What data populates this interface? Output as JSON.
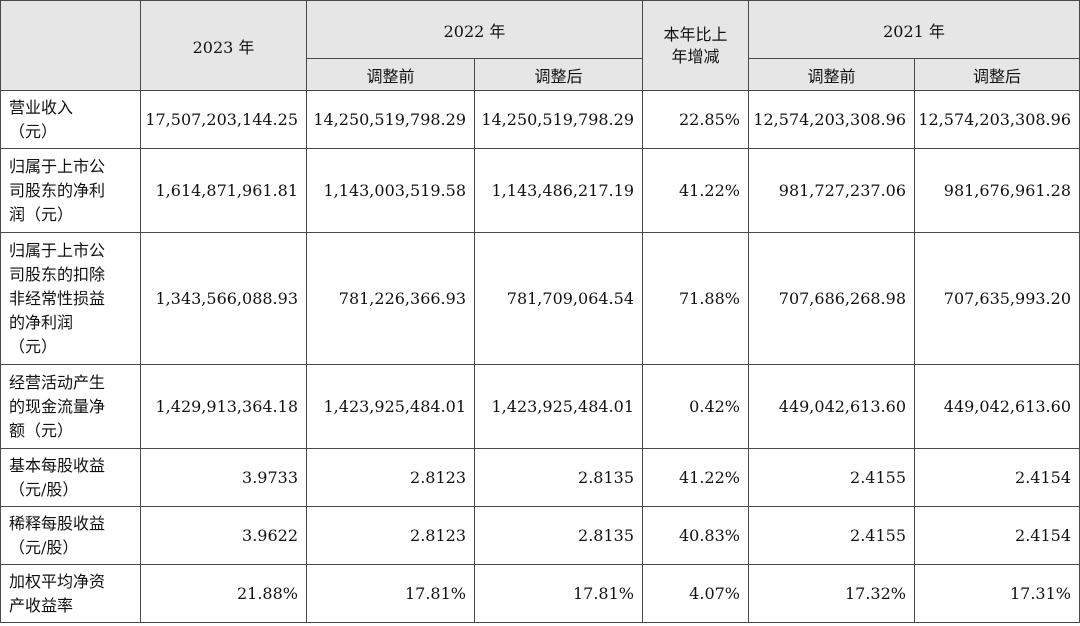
{
  "header": {
    "col_2023": "2023 年",
    "col_2022": "2022 年",
    "col_change": [
      "本年比上",
      "年增减"
    ],
    "col_2021": "2021 年",
    "sub_before": "调整前",
    "sub_after": "调整后"
  },
  "rows": [
    {
      "label": [
        "营业收入",
        "（元）"
      ],
      "values": [
        "17,507,203,144.25",
        "14,250,519,798.29",
        "14,250,519,798.29",
        "22.85%",
        "12,574,203,308.96",
        "12,574,203,308.96"
      ]
    },
    {
      "label": [
        "归属于上市公",
        "司股东的净利",
        "润（元）"
      ],
      "values": [
        "1,614,871,961.81",
        "1,143,003,519.58",
        "1,143,486,217.19",
        "41.22%",
        "981,727,237.06",
        "981,676,961.28"
      ]
    },
    {
      "label": [
        "归属于上市公",
        "司股东的扣除",
        "非经常性损益",
        "的净利润",
        "（元）"
      ],
      "values": [
        "1,343,566,088.93",
        "781,226,366.93",
        "781,709,064.54",
        "71.88%",
        "707,686,268.98",
        "707,635,993.20"
      ]
    },
    {
      "label": [
        "经营活动产生",
        "的现金流量净",
        "额（元）"
      ],
      "values": [
        "1,429,913,364.18",
        "1,423,925,484.01",
        "1,423,925,484.01",
        "0.42%",
        "449,042,613.60",
        "449,042,613.60"
      ]
    },
    {
      "label": [
        "基本每股收益",
        "（元/股）"
      ],
      "values": [
        "3.9733",
        "2.8123",
        "2.8135",
        "41.22%",
        "2.4155",
        "2.4154"
      ]
    },
    {
      "label": [
        "稀释每股收益",
        "（元/股）"
      ],
      "values": [
        "3.9622",
        "2.8123",
        "2.8135",
        "40.83%",
        "2.4155",
        "2.4154"
      ]
    },
    {
      "label": [
        "加权平均净资",
        "产收益率"
      ],
      "values": [
        "21.88%",
        "17.81%",
        "17.81%",
        "4.07%",
        "17.32%",
        "17.31%"
      ]
    }
  ]
}
